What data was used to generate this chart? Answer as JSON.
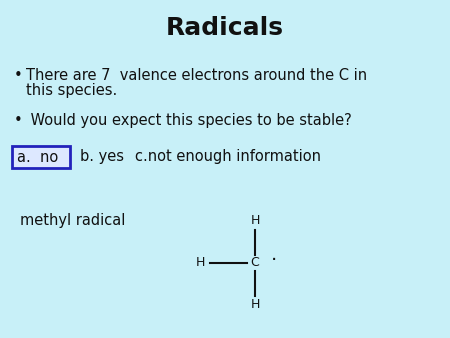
{
  "title": "Radicals",
  "title_fontsize": 18,
  "background_color": "#c8f0f8",
  "text_color": "#111111",
  "bullet1_line1": "There are 7  valence electrons around the C in",
  "bullet1_line2": "this species.",
  "bullet2": " Would you expect this species to be stable?",
  "answer_a": "a.  no",
  "answer_b": "b. yes",
  "answer_c": "c.not enough information",
  "label_methyl": "methyl radical",
  "font_size_body": 10.5,
  "font_size_answer": 10.5,
  "box_edge_color": "#2222bb",
  "box_face_color": "#dde8ff",
  "answer_text_color": "#111111"
}
